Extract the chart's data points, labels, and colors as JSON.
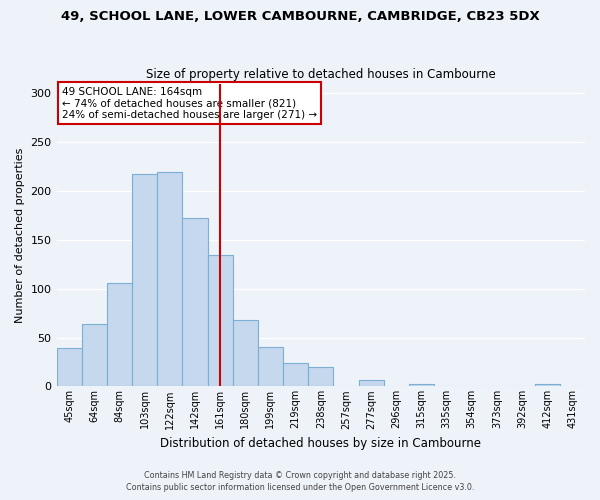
{
  "title": "49, SCHOOL LANE, LOWER CAMBOURNE, CAMBRIDGE, CB23 5DX",
  "subtitle": "Size of property relative to detached houses in Cambourne",
  "xlabel": "Distribution of detached houses by size in Cambourne",
  "ylabel": "Number of detached properties",
  "bar_labels": [
    "45sqm",
    "64sqm",
    "84sqm",
    "103sqm",
    "122sqm",
    "142sqm",
    "161sqm",
    "180sqm",
    "199sqm",
    "219sqm",
    "238sqm",
    "257sqm",
    "277sqm",
    "296sqm",
    "315sqm",
    "335sqm",
    "354sqm",
    "373sqm",
    "392sqm",
    "412sqm",
    "431sqm"
  ],
  "bar_heights": [
    39,
    64,
    106,
    217,
    219,
    172,
    135,
    68,
    40,
    24,
    20,
    0,
    7,
    0,
    2,
    0,
    0,
    0,
    0,
    2,
    0
  ],
  "bar_color": "#c5d8ed",
  "bar_edge_color": "#7bafd4",
  "vline_index": 6,
  "vline_color": "#cc0000",
  "ylim": [
    0,
    310
  ],
  "yticks": [
    0,
    50,
    100,
    150,
    200,
    250,
    300
  ],
  "annotation_title": "49 SCHOOL LANE: 164sqm",
  "annotation_line1": "← 74% of detached houses are smaller (821)",
  "annotation_line2": "24% of semi-detached houses are larger (271) →",
  "annotation_box_color": "#ffffff",
  "annotation_box_edge": "#cc0000",
  "footer_line1": "Contains HM Land Registry data © Crown copyright and database right 2025.",
  "footer_line2": "Contains public sector information licensed under the Open Government Licence v3.0.",
  "bg_color": "#eef2f9",
  "grid_color": "#ffffff"
}
